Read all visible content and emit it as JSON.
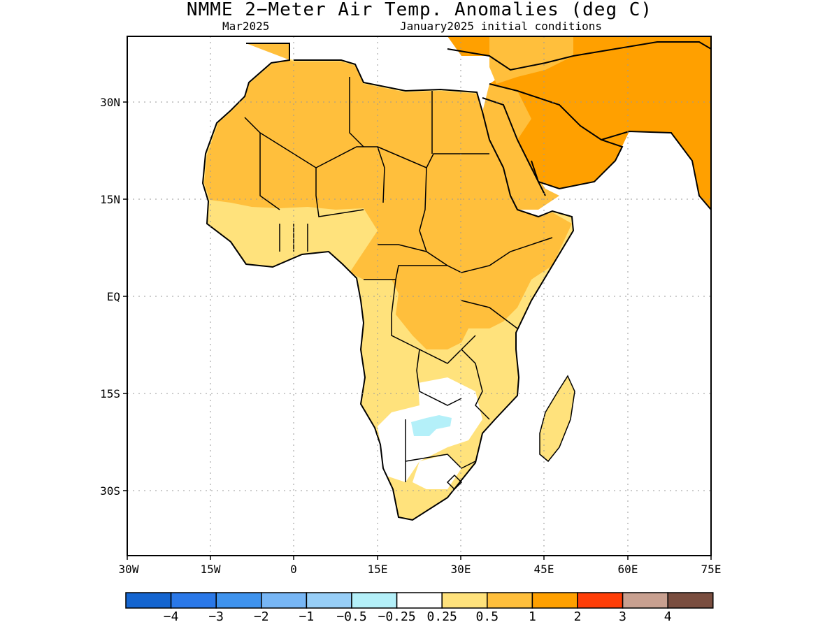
{
  "title": "NMME 2−Meter Air Temp. Anomalies (deg C)",
  "subtitle_left": "Mar2025",
  "subtitle_right": "January2025 initial conditions",
  "map": {
    "region": "Africa and Arabian Peninsula",
    "lon_range": [
      -30,
      75
    ],
    "lat_range": [
      -40,
      40
    ],
    "lat_ticks": [
      "30N",
      "15N",
      "EQ",
      "15S",
      "30S"
    ],
    "lon_ticks": [
      "30W",
      "15W",
      "0",
      "15E",
      "30E",
      "45E",
      "60E",
      "75E"
    ],
    "grid": "dotted"
  },
  "colorbar": {
    "colors": [
      "#1465d0",
      "#2a78e8",
      "#3f93ee",
      "#77b6f5",
      "#97cef7",
      "#b4f0f9",
      "#ffffff",
      "#ffe27c",
      "#ffbf3c",
      "#ffa000",
      "#ff3e08",
      "#c8a090",
      "#7a4e40"
    ],
    "labels": [
      "−4",
      "−3",
      "−2",
      "−1",
      "−0.5",
      "−0.25",
      "0.25",
      "0.5",
      "1",
      "2",
      "3",
      "4"
    ]
  },
  "anomaly_regions": [
    {
      "name": "North Africa / Sahara",
      "category": "1"
    },
    {
      "name": "Arabian Peninsula / Middle East",
      "category": "2"
    },
    {
      "name": "West Africa coast",
      "category": "0.5"
    },
    {
      "name": "Central Africa",
      "category": "1"
    },
    {
      "name": "Southern Africa interior",
      "category": "0.25"
    },
    {
      "name": "Botswana",
      "category": "−0.25"
    },
    {
      "name": "Madagascar",
      "category": "0.5"
    }
  ]
}
